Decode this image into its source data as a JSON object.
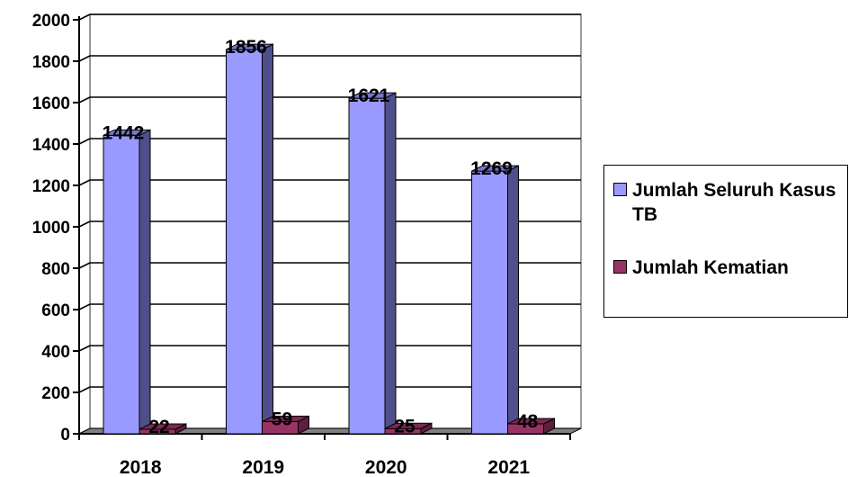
{
  "colors": {
    "series1_front": "#9999ff",
    "series1_side": "#4f4f8c",
    "series1_top": "#7777cc",
    "series2_front": "#993366",
    "series2_side": "#5c1f3d",
    "series2_top": "#7a2952",
    "floor": "#808080",
    "grid": "#000000"
  },
  "chart_data": {
    "type": "bar",
    "categories": [
      "2018",
      "2019",
      "2020",
      "2021"
    ],
    "series": [
      {
        "name": "Jumlah Seluruh Kasus TB",
        "values": [
          1442,
          1856,
          1621,
          1269
        ],
        "labels": [
          "1442",
          "1856",
          "1621",
          "1269"
        ]
      },
      {
        "name": "Jumlah Kematian",
        "values": [
          22,
          59,
          25,
          48
        ],
        "labels": [
          "22",
          "59",
          "25",
          "48"
        ]
      }
    ],
    "yticks": [
      "0",
      "200",
      "400",
      "600",
      "800",
      "1000",
      "1200",
      "1400",
      "1600",
      "1800",
      "2000"
    ],
    "ylim": [
      0,
      2000
    ],
    "grid": true,
    "legend_position": "right",
    "title": "",
    "xlabel": "",
    "ylabel": ""
  }
}
